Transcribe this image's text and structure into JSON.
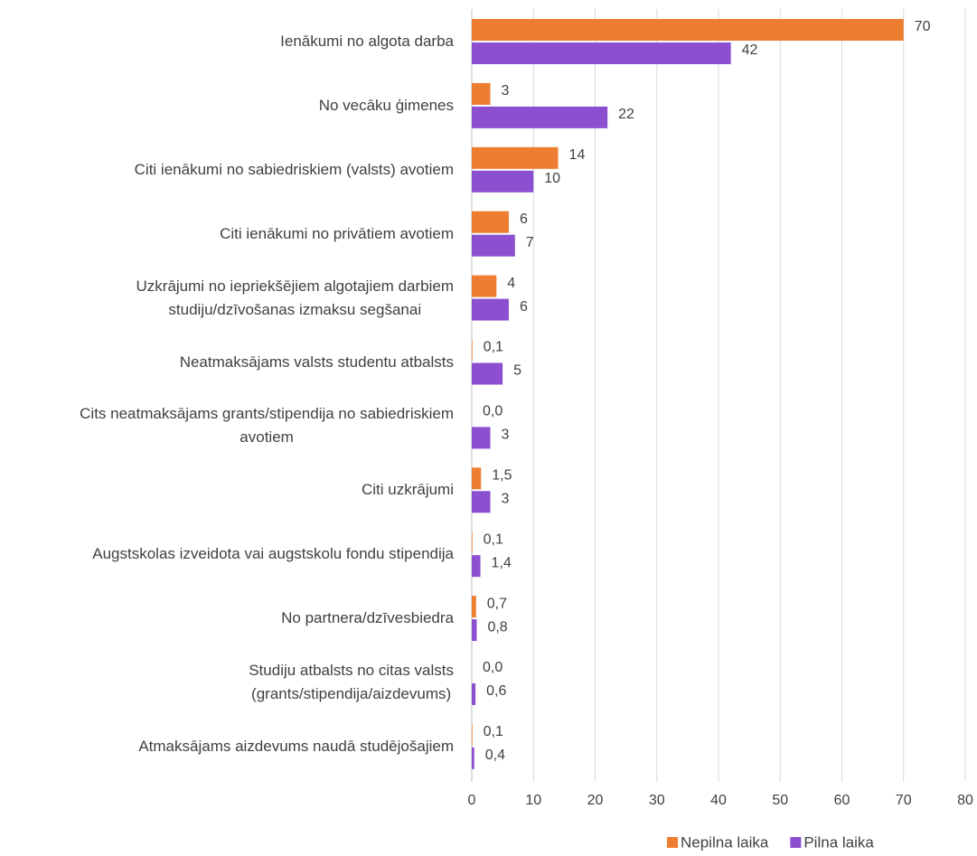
{
  "chart_data": {
    "type": "hbar",
    "categories": [
      "Ienākumi no algota darba",
      "No vecāku ģimenes",
      "Citi ienākumi no sabiedriskiem (valsts) avotiem",
      "Citi ienākumi no privātiem avotiem",
      "Uzkrājumi no iepriekšējiem algotajiem darbiem\nstudiju/dzīvošanas izmaksu segšanai",
      "Neatmaksājams valsts studentu atbalsts",
      "Cits neatmaksājams grants/stipendija no sabiedriskiem\navotiem",
      "Citi uzkrājumi",
      "Augstskolas izveidota vai augstskolu fondu stipendija",
      "No partnera/dzīvesbiedra",
      "Studiju atbalsts no citas valsts\n(grants/stipendija/aizdevums)",
      "Atmaksājams aizdevums naudā studējošajiem"
    ],
    "series": [
      {
        "name": "Nepilna laika",
        "color": "#ed7d31",
        "values": [
          70,
          3,
          14,
          6,
          4,
          0.1,
          0.0,
          1.5,
          0.1,
          0.7,
          0.0,
          0.1
        ],
        "value_labels": [
          "70",
          "3",
          "14",
          "6",
          "4",
          "0,1",
          "0,0",
          "1,5",
          "0,1",
          "0,7",
          "0,0",
          "0,1"
        ]
      },
      {
        "name": "Pilna laika",
        "color": "#8b4fd0",
        "values": [
          42,
          22,
          10,
          7,
          6,
          5,
          3,
          3,
          1.4,
          0.8,
          0.6,
          0.4
        ],
        "value_labels": [
          "42",
          "22",
          "10",
          "7",
          "6",
          "5",
          "3",
          "3",
          "1,4",
          "0,8",
          "0,6",
          "0,4"
        ]
      }
    ],
    "xlim": [
      0,
      80
    ],
    "xticks": [
      0,
      10,
      20,
      30,
      40,
      50,
      60,
      70,
      80
    ],
    "grid": true,
    "legend": "bottom"
  }
}
